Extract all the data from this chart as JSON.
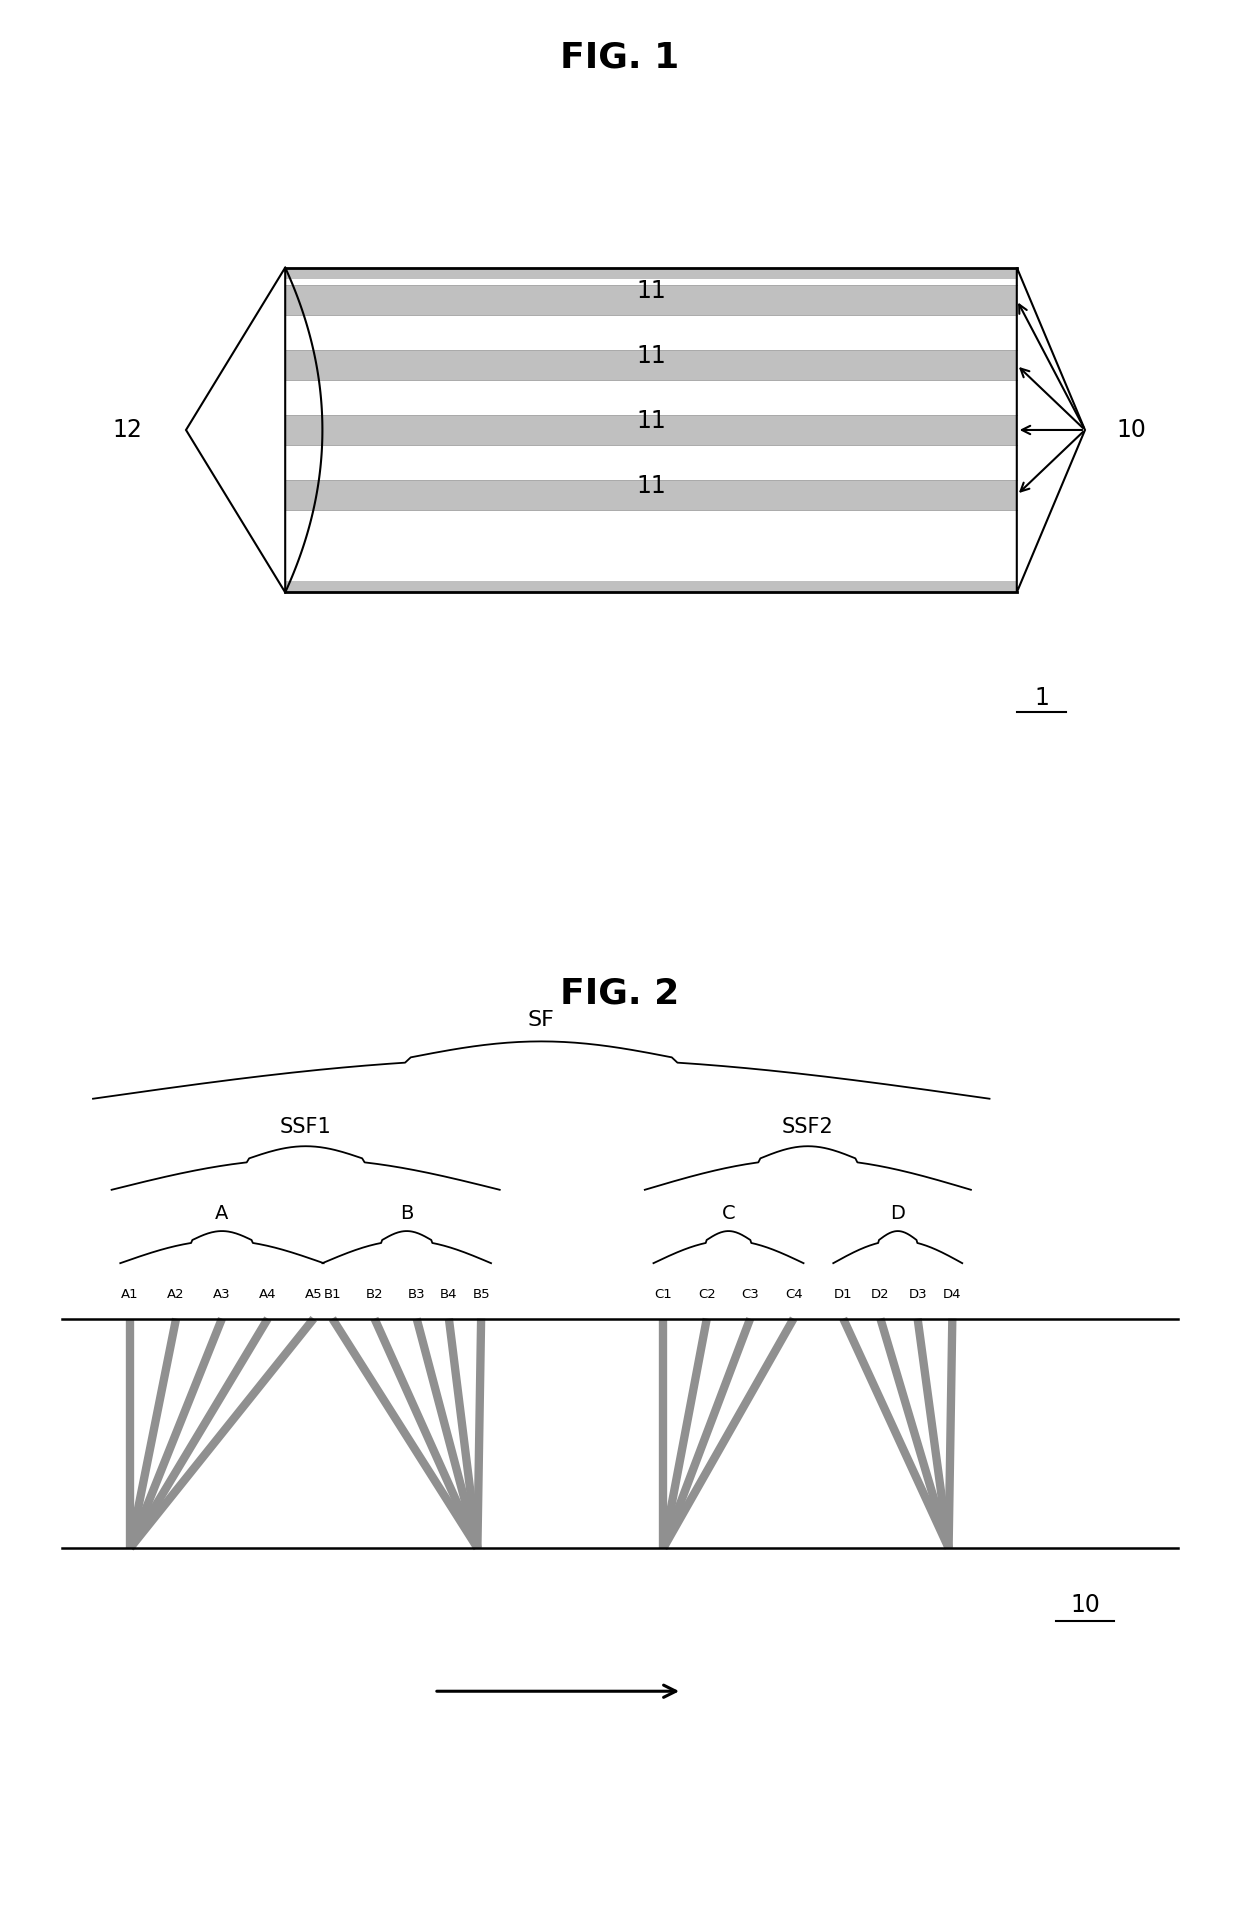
{
  "fig1_title": "FIG. 1",
  "fig2_title": "FIG. 2",
  "label_1": "1",
  "label_10_fig1": "10",
  "label_12": "12",
  "label_11": "11",
  "label_10_fig2": "10",
  "sf_label": "SF",
  "ssf1_label": "SSF1",
  "ssf2_label": "SSF2",
  "a_label": "A",
  "b_label": "B",
  "c_label": "C",
  "d_label": "D",
  "track_labels_A": [
    "A1",
    "A2",
    "A3",
    "A4",
    "A5"
  ],
  "track_labels_B": [
    "B1",
    "B2",
    "B3",
    "B4",
    "B5"
  ],
  "track_labels_C": [
    "C1",
    "C2",
    "C3",
    "C4"
  ],
  "track_labels_D": [
    "D1",
    "D2",
    "D3",
    "D4"
  ],
  "bg_color": "#ffffff",
  "tape_fill": "#ffffff",
  "tape_border": "#000000",
  "track_color": "#c0c0c0",
  "stripe_color": "#909090"
}
